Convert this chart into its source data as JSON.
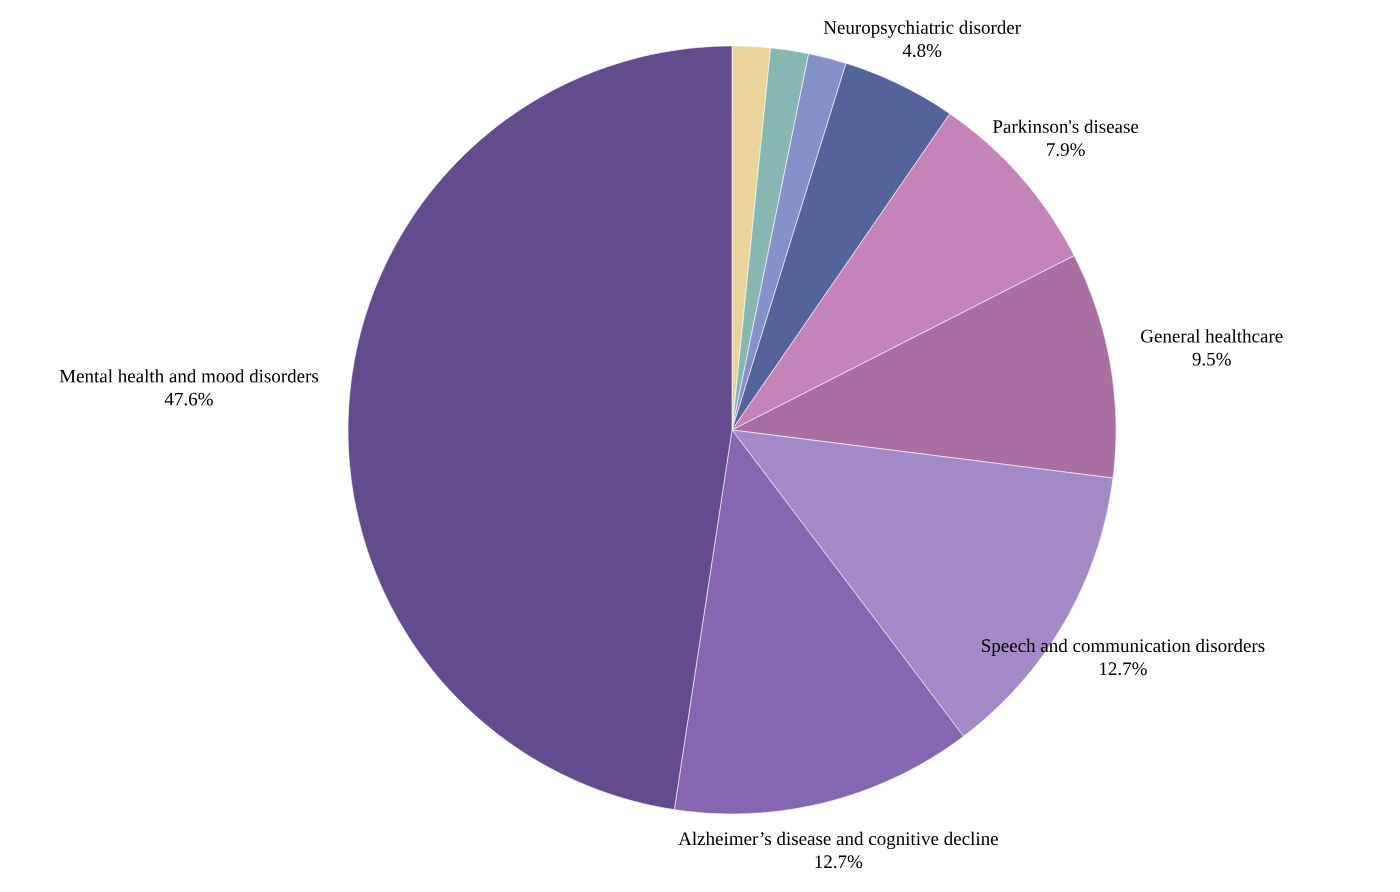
{
  "chart_data": {
    "type": "pie",
    "categories": [
      null,
      null,
      null,
      "Neuropsychiatric disorder",
      "Parkinson's disease",
      "General healthcare",
      "Speech and communication disorders",
      "Alzheimer’s disease and cognitive decline",
      "Mental health and mood disorders"
    ],
    "values": [
      1.6,
      1.6,
      1.6,
      4.8,
      7.9,
      9.5,
      12.7,
      12.7,
      47.6
    ],
    "value_labels": [
      null,
      null,
      null,
      "4.8%",
      "7.9%",
      "9.5%",
      "12.7%",
      "12.7%",
      "47.6%"
    ],
    "colors": [
      "#ead49b",
      "#86b7b2",
      "#8591c9",
      "#54639a",
      "#c584b8",
      "#a96ea2",
      "#a389c8",
      "#8466b1",
      "#624c8e"
    ]
  }
}
